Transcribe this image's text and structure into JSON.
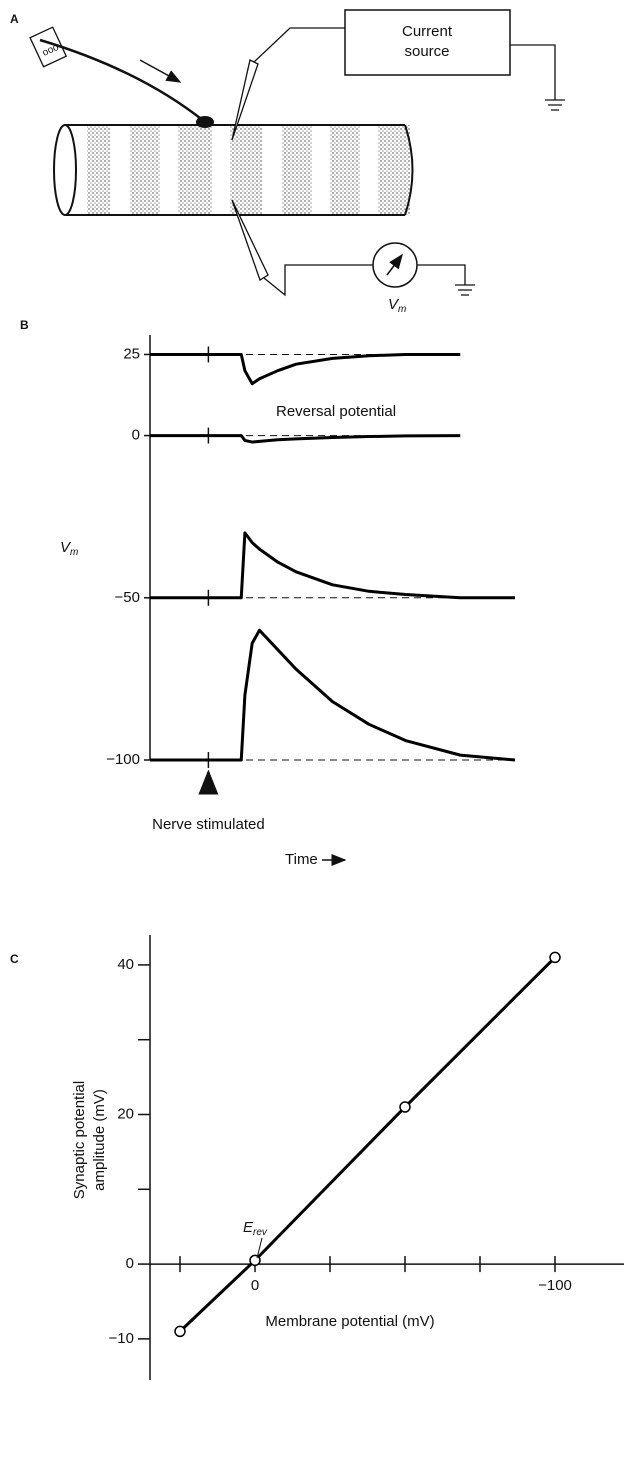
{
  "panels": {
    "a": "A",
    "b": "B",
    "c": "C"
  },
  "diagram": {
    "source_label": [
      "Current",
      "source"
    ],
    "meter_label": {
      "text": "V",
      "subscript": "m"
    }
  },
  "chart_data": [
    {
      "type": "line",
      "y_label": {
        "text": "V",
        "subscript": "m"
      },
      "x": [
        0,
        16,
        25,
        26,
        28,
        30,
        35,
        40,
        50,
        60,
        70,
        85,
        100
      ],
      "xlim": [
        0,
        100
      ],
      "ylim": [
        -100,
        31
      ],
      "yticks": [
        25,
        0,
        {
          "value": -50,
          "label": "−50"
        },
        {
          "value": -100,
          "label": "−100"
        }
      ],
      "series": [
        {
          "name": "25",
          "color": "#000000",
          "values": [
            25,
            25,
            25,
            20,
            16,
            17.5,
            20,
            22,
            23.8,
            24.6,
            25,
            25,
            null
          ]
        },
        {
          "name": "0",
          "color": "#000000",
          "values": [
            0,
            0,
            0,
            -1.5,
            -2,
            -1.8,
            -1.3,
            -1,
            -0.6,
            -0.3,
            -0.1,
            0,
            null
          ]
        },
        {
          "name": "-50",
          "color": "#000000",
          "values": [
            -50,
            -50,
            -50,
            -30,
            -33,
            -35,
            -39,
            -42,
            -46,
            -48,
            -49,
            -50,
            -50
          ]
        },
        {
          "name": "-100",
          "color": "#000000",
          "values": [
            -100,
            -100,
            -100,
            -80,
            -64,
            -60,
            -66,
            -72,
            -82,
            -89,
            -94,
            -98.5,
            -100
          ]
        }
      ],
      "annotation": "Reversal potential",
      "stimulus": {
        "label": "Nerve stimulated",
        "x": 16
      },
      "x_label": "Time"
    },
    {
      "type": "scatter",
      "x_label": "Membrane potential (mV)",
      "y_label": [
        "Synaptic potential",
        "amplitude (mV)"
      ],
      "x": [
        25,
        0,
        -50,
        -100
      ],
      "values": [
        -9,
        0.5,
        21,
        41
      ],
      "color": "#000000",
      "xlim": [
        35,
        -123
      ],
      "xticks": [
        0,
        {
          "value": -100,
          "label": "−100"
        }
      ],
      "xminorticks": [
        25,
        -25,
        -50,
        -75
      ],
      "ylim": [
        -15.5,
        44
      ],
      "yticks": [
        40,
        20,
        0,
        {
          "value": -10,
          "label": "−10"
        }
      ],
      "yminorticks": [
        30,
        10
      ],
      "annotation": {
        "text": "E",
        "subscript": "rev"
      }
    }
  ]
}
